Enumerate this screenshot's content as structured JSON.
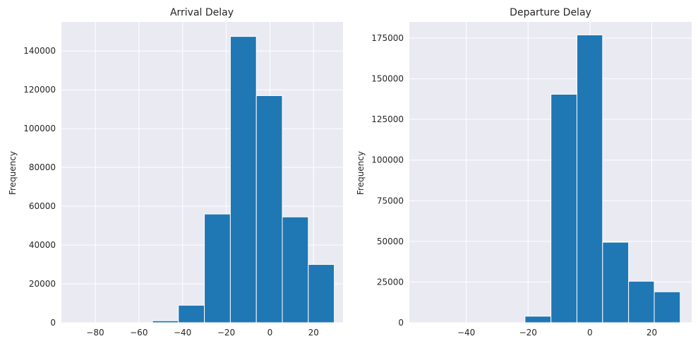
{
  "chart_data": [
    {
      "type": "bar",
      "title": "Arrival Delay",
      "xlabel": "",
      "ylabel": "Frequency",
      "xlim": [
        -95.5,
        33.5
      ],
      "ylim": [
        0,
        155000
      ],
      "xticks": [
        -80,
        -60,
        -40,
        -20,
        0,
        20
      ],
      "xtick_labels": [
        "−80",
        "−60",
        "−40",
        "−20",
        "0",
        "20"
      ],
      "yticks": [
        0,
        20000,
        40000,
        60000,
        80000,
        100000,
        120000,
        140000
      ],
      "ytick_labels": [
        "0",
        "20000",
        "40000",
        "60000",
        "80000",
        "100000",
        "120000",
        "140000"
      ],
      "bin_edges": [
        -89.5,
        -77.6,
        -65.7,
        -53.8,
        -41.9,
        -30.0,
        -18.1,
        -6.2,
        5.7,
        17.6,
        29.5
      ],
      "values": [
        0,
        0,
        0,
        1000,
        9000,
        56000,
        147500,
        117000,
        54500,
        30000
      ],
      "color": "#1f77b4",
      "grid": true
    },
    {
      "type": "bar",
      "title": "Departure Delay",
      "xlabel": "",
      "ylabel": "Frequency",
      "xlim": [
        -58.4,
        32.9
      ],
      "ylim": [
        0,
        185000
      ],
      "xticks": [
        -40,
        -20,
        0,
        20
      ],
      "xtick_labels": [
        "−40",
        "−20",
        "0",
        "20"
      ],
      "yticks": [
        0,
        25000,
        50000,
        75000,
        100000,
        125000,
        150000,
        175000
      ],
      "ytick_labels": [
        "0",
        "25000",
        "50000",
        "75000",
        "100000",
        "125000",
        "150000",
        "175000"
      ],
      "bin_edges": [
        -54.4,
        -46.0,
        -37.7,
        -29.3,
        -21.0,
        -12.6,
        -4.2,
        4.1,
        12.5,
        20.8,
        29.2
      ],
      "values": [
        0,
        0,
        0,
        0,
        4000,
        140500,
        177000,
        49500,
        25500,
        19000
      ],
      "color": "#1f77b4",
      "grid": true
    }
  ]
}
